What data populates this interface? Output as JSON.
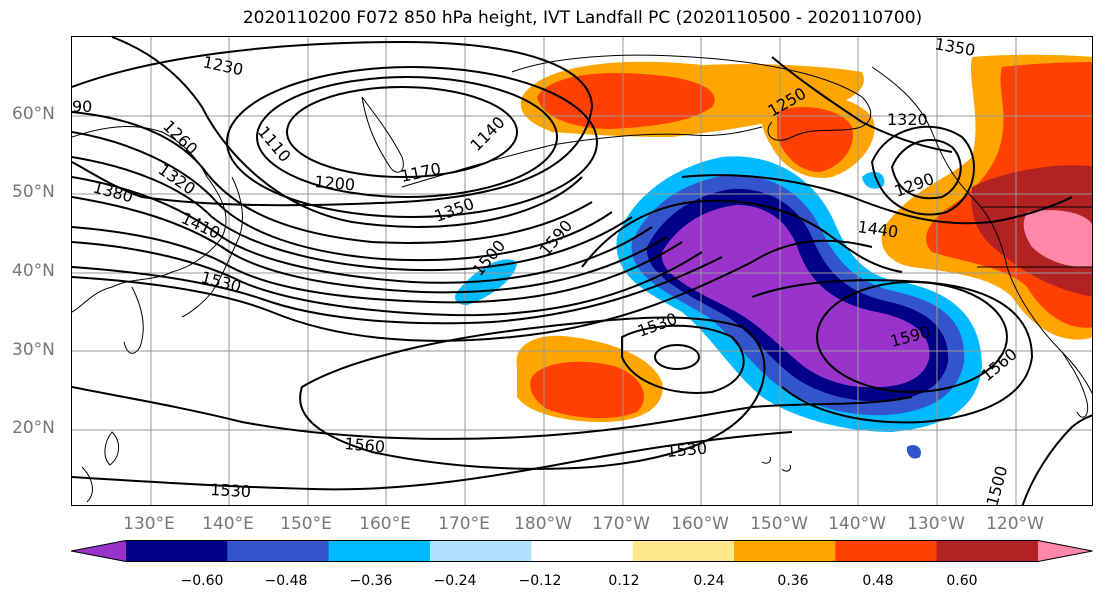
{
  "title": "2020110200 F072 850 hPa height, IVT Landfall PC (2020110500 - 2020110700)",
  "lat_labels": [
    "60°N",
    "50°N",
    "40°N",
    "30°N",
    "20°N"
  ],
  "lon_labels": [
    "130°E",
    "140°E",
    "150°E",
    "160°E",
    "170°E",
    "180°W",
    "170°W",
    "160°W",
    "150°W",
    "140°W",
    "130°W",
    "120°W"
  ],
  "contour_labels": [
    "1230",
    "1260",
    "1320",
    "1380",
    "1410",
    "1530",
    "1110",
    "1200",
    "1170",
    "1140",
    "1350",
    "1500",
    "1590",
    "1530",
    "1560",
    "1530",
    "1560",
    "1530",
    "1590",
    "1440",
    "1250",
    "1320",
    "1290",
    "1560",
    "1500",
    "1350",
    "90"
  ],
  "colorbar": {
    "ticks": [
      "−0.60",
      "−0.48",
      "−0.36",
      "−0.24",
      "−0.12",
      "0.12",
      "0.24",
      "0.36",
      "0.48",
      "0.60"
    ],
    "colors": [
      "#9933cc",
      "#000088",
      "#3355cc",
      "#00bbff",
      "#b0e2ff",
      "#ffffff",
      "#ffe98a",
      "#ffa500",
      "#ff4000",
      "#b22222",
      "#ff88aa"
    ]
  }
}
